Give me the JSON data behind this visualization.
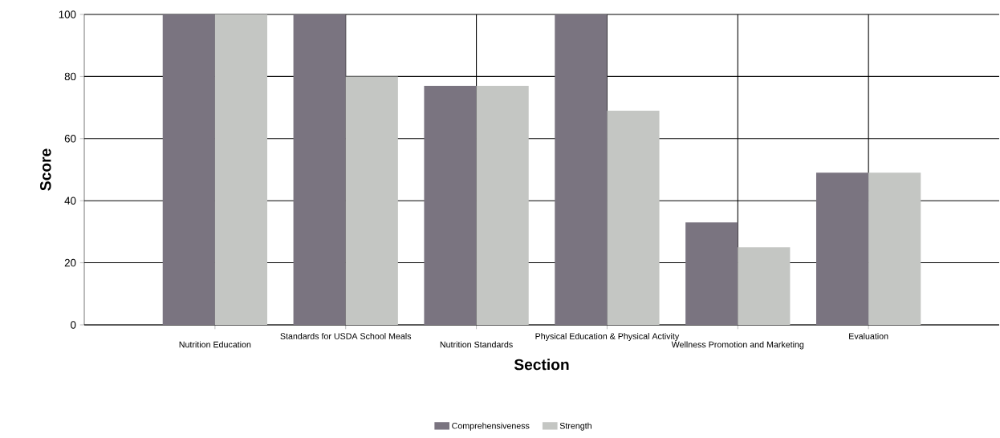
{
  "chart_data": {
    "type": "bar",
    "xlabel": "Section",
    "ylabel": "Score",
    "categories": [
      "Nutrition Education",
      "Standards for USDA School Meals",
      "Nutrition Standards",
      "Physical Education & Physical Activity",
      "Wellness Promotion and Marketing",
      "Evaluation"
    ],
    "series": [
      {
        "name": "Comprehensiveness",
        "color": "#7a7480",
        "values": [
          100,
          100,
          77,
          100,
          33,
          49
        ]
      },
      {
        "name": "Strength",
        "color": "#c4c6c3",
        "values": [
          100,
          80,
          77,
          69,
          25,
          49
        ]
      }
    ],
    "ylim": [
      0,
      100
    ],
    "yticks": [
      0,
      20,
      40,
      60,
      80,
      100
    ],
    "grid": true,
    "legend": "bottom"
  }
}
